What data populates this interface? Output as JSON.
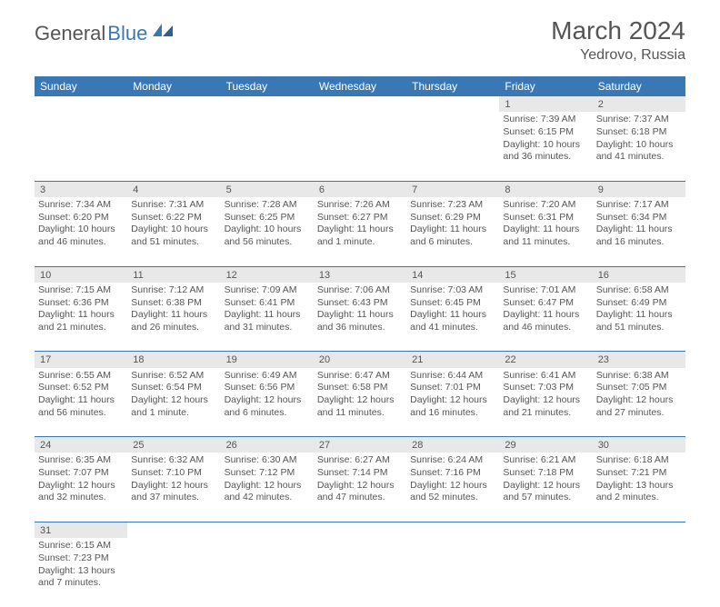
{
  "logo": {
    "text1": "General",
    "text2": "Blue"
  },
  "title": "March 2024",
  "location": "Yedrovo, Russia",
  "colors": {
    "header_bg": "#3a78b5",
    "header_text": "#ffffff",
    "daynum_bg": "#e8e8e8",
    "row_border": "#3a78b5",
    "body_text": "#555555",
    "logo_blue": "#3a78b5"
  },
  "weekdays": [
    "Sunday",
    "Monday",
    "Tuesday",
    "Wednesday",
    "Thursday",
    "Friday",
    "Saturday"
  ],
  "weeks": [
    {
      "nums": [
        "",
        "",
        "",
        "",
        "",
        "1",
        "2"
      ],
      "cells": [
        null,
        null,
        null,
        null,
        null,
        {
          "sunrise": "Sunrise: 7:39 AM",
          "sunset": "Sunset: 6:15 PM",
          "daylight1": "Daylight: 10 hours",
          "daylight2": "and 36 minutes."
        },
        {
          "sunrise": "Sunrise: 7:37 AM",
          "sunset": "Sunset: 6:18 PM",
          "daylight1": "Daylight: 10 hours",
          "daylight2": "and 41 minutes."
        }
      ]
    },
    {
      "nums": [
        "3",
        "4",
        "5",
        "6",
        "7",
        "8",
        "9"
      ],
      "cells": [
        {
          "sunrise": "Sunrise: 7:34 AM",
          "sunset": "Sunset: 6:20 PM",
          "daylight1": "Daylight: 10 hours",
          "daylight2": "and 46 minutes."
        },
        {
          "sunrise": "Sunrise: 7:31 AM",
          "sunset": "Sunset: 6:22 PM",
          "daylight1": "Daylight: 10 hours",
          "daylight2": "and 51 minutes."
        },
        {
          "sunrise": "Sunrise: 7:28 AM",
          "sunset": "Sunset: 6:25 PM",
          "daylight1": "Daylight: 10 hours",
          "daylight2": "and 56 minutes."
        },
        {
          "sunrise": "Sunrise: 7:26 AM",
          "sunset": "Sunset: 6:27 PM",
          "daylight1": "Daylight: 11 hours",
          "daylight2": "and 1 minute."
        },
        {
          "sunrise": "Sunrise: 7:23 AM",
          "sunset": "Sunset: 6:29 PM",
          "daylight1": "Daylight: 11 hours",
          "daylight2": "and 6 minutes."
        },
        {
          "sunrise": "Sunrise: 7:20 AM",
          "sunset": "Sunset: 6:31 PM",
          "daylight1": "Daylight: 11 hours",
          "daylight2": "and 11 minutes."
        },
        {
          "sunrise": "Sunrise: 7:17 AM",
          "sunset": "Sunset: 6:34 PM",
          "daylight1": "Daylight: 11 hours",
          "daylight2": "and 16 minutes."
        }
      ]
    },
    {
      "nums": [
        "10",
        "11",
        "12",
        "13",
        "14",
        "15",
        "16"
      ],
      "cells": [
        {
          "sunrise": "Sunrise: 7:15 AM",
          "sunset": "Sunset: 6:36 PM",
          "daylight1": "Daylight: 11 hours",
          "daylight2": "and 21 minutes."
        },
        {
          "sunrise": "Sunrise: 7:12 AM",
          "sunset": "Sunset: 6:38 PM",
          "daylight1": "Daylight: 11 hours",
          "daylight2": "and 26 minutes."
        },
        {
          "sunrise": "Sunrise: 7:09 AM",
          "sunset": "Sunset: 6:41 PM",
          "daylight1": "Daylight: 11 hours",
          "daylight2": "and 31 minutes."
        },
        {
          "sunrise": "Sunrise: 7:06 AM",
          "sunset": "Sunset: 6:43 PM",
          "daylight1": "Daylight: 11 hours",
          "daylight2": "and 36 minutes."
        },
        {
          "sunrise": "Sunrise: 7:03 AM",
          "sunset": "Sunset: 6:45 PM",
          "daylight1": "Daylight: 11 hours",
          "daylight2": "and 41 minutes."
        },
        {
          "sunrise": "Sunrise: 7:01 AM",
          "sunset": "Sunset: 6:47 PM",
          "daylight1": "Daylight: 11 hours",
          "daylight2": "and 46 minutes."
        },
        {
          "sunrise": "Sunrise: 6:58 AM",
          "sunset": "Sunset: 6:49 PM",
          "daylight1": "Daylight: 11 hours",
          "daylight2": "and 51 minutes."
        }
      ]
    },
    {
      "nums": [
        "17",
        "18",
        "19",
        "20",
        "21",
        "22",
        "23"
      ],
      "cells": [
        {
          "sunrise": "Sunrise: 6:55 AM",
          "sunset": "Sunset: 6:52 PM",
          "daylight1": "Daylight: 11 hours",
          "daylight2": "and 56 minutes."
        },
        {
          "sunrise": "Sunrise: 6:52 AM",
          "sunset": "Sunset: 6:54 PM",
          "daylight1": "Daylight: 12 hours",
          "daylight2": "and 1 minute."
        },
        {
          "sunrise": "Sunrise: 6:49 AM",
          "sunset": "Sunset: 6:56 PM",
          "daylight1": "Daylight: 12 hours",
          "daylight2": "and 6 minutes."
        },
        {
          "sunrise": "Sunrise: 6:47 AM",
          "sunset": "Sunset: 6:58 PM",
          "daylight1": "Daylight: 12 hours",
          "daylight2": "and 11 minutes."
        },
        {
          "sunrise": "Sunrise: 6:44 AM",
          "sunset": "Sunset: 7:01 PM",
          "daylight1": "Daylight: 12 hours",
          "daylight2": "and 16 minutes."
        },
        {
          "sunrise": "Sunrise: 6:41 AM",
          "sunset": "Sunset: 7:03 PM",
          "daylight1": "Daylight: 12 hours",
          "daylight2": "and 21 minutes."
        },
        {
          "sunrise": "Sunrise: 6:38 AM",
          "sunset": "Sunset: 7:05 PM",
          "daylight1": "Daylight: 12 hours",
          "daylight2": "and 27 minutes."
        }
      ]
    },
    {
      "nums": [
        "24",
        "25",
        "26",
        "27",
        "28",
        "29",
        "30"
      ],
      "cells": [
        {
          "sunrise": "Sunrise: 6:35 AM",
          "sunset": "Sunset: 7:07 PM",
          "daylight1": "Daylight: 12 hours",
          "daylight2": "and 32 minutes."
        },
        {
          "sunrise": "Sunrise: 6:32 AM",
          "sunset": "Sunset: 7:10 PM",
          "daylight1": "Daylight: 12 hours",
          "daylight2": "and 37 minutes."
        },
        {
          "sunrise": "Sunrise: 6:30 AM",
          "sunset": "Sunset: 7:12 PM",
          "daylight1": "Daylight: 12 hours",
          "daylight2": "and 42 minutes."
        },
        {
          "sunrise": "Sunrise: 6:27 AM",
          "sunset": "Sunset: 7:14 PM",
          "daylight1": "Daylight: 12 hours",
          "daylight2": "and 47 minutes."
        },
        {
          "sunrise": "Sunrise: 6:24 AM",
          "sunset": "Sunset: 7:16 PM",
          "daylight1": "Daylight: 12 hours",
          "daylight2": "and 52 minutes."
        },
        {
          "sunrise": "Sunrise: 6:21 AM",
          "sunset": "Sunset: 7:18 PM",
          "daylight1": "Daylight: 12 hours",
          "daylight2": "and 57 minutes."
        },
        {
          "sunrise": "Sunrise: 6:18 AM",
          "sunset": "Sunset: 7:21 PM",
          "daylight1": "Daylight: 13 hours",
          "daylight2": "and 2 minutes."
        }
      ]
    },
    {
      "nums": [
        "31",
        "",
        "",
        "",
        "",
        "",
        ""
      ],
      "cells": [
        {
          "sunrise": "Sunrise: 6:15 AM",
          "sunset": "Sunset: 7:23 PM",
          "daylight1": "Daylight: 13 hours",
          "daylight2": "and 7 minutes."
        },
        null,
        null,
        null,
        null,
        null,
        null
      ]
    }
  ]
}
